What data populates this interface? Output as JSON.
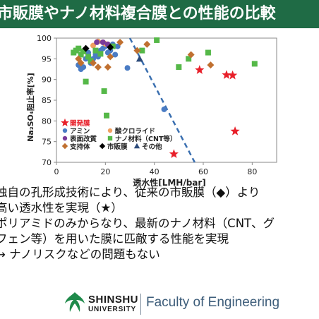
{
  "slide": {
    "title": "市販膜やナノ材料複合膜との性能の比較",
    "bullets": [
      "独自の孔形成技術により、従来の市販膜（◆）より",
      "高い透水性を実現（★）",
      "ポリアミドのみからなり、最新のナノ材料（CNT、グ",
      "フェン等）を用いた膜に匹敵する性能を実現",
      "→ ナノリスクなどの問題もない"
    ],
    "footer": {
      "logo_name": "SHINSHU",
      "logo_sub": "UNIVERSITY",
      "faculty": "Faculty of Engineering"
    }
  },
  "chart_data": {
    "type": "scatter",
    "xlabel": "透水性[LMH/bar]",
    "ylabel": "Na₂SO₄阻止率[%]",
    "xlim": [
      0,
      90
    ],
    "ylim": [
      70,
      100
    ],
    "x_ticks": [
      0,
      20,
      40,
      60,
      80
    ],
    "y_ticks": [
      70,
      75,
      80,
      85,
      90,
      95,
      100
    ],
    "grid": false,
    "legend_position": "bottom-left",
    "series": [
      {
        "name": "開発膜",
        "marker": "star",
        "color": "#e8202a",
        "points": [
          [
            48,
            72
          ],
          [
            58.5,
            92.3
          ],
          [
            69.5,
            91.1
          ],
          [
            72,
            91
          ],
          [
            73,
            77.5
          ]
        ]
      },
      {
        "name": "アミン",
        "marker": "circle",
        "color": "#4a7cc4",
        "points": [
          [
            9,
            93.5
          ],
          [
            10,
            92.5
          ],
          [
            11,
            93
          ],
          [
            12,
            95
          ],
          [
            13,
            96.5
          ],
          [
            14,
            94
          ],
          [
            15,
            95
          ],
          [
            16,
            96
          ],
          [
            17,
            95.5
          ],
          [
            18,
            97
          ],
          [
            19,
            97.5
          ],
          [
            20,
            98
          ],
          [
            21,
            96.5
          ],
          [
            22,
            97
          ],
          [
            23,
            98.5
          ],
          [
            24,
            96
          ],
          [
            25,
            98
          ],
          [
            29,
            92.8
          ],
          [
            44,
            82.8
          ]
        ]
      },
      {
        "name": "酸クロライド",
        "marker": "circle",
        "color": "#f0a060",
        "points": [
          [
            15,
            98.2
          ],
          [
            17,
            99.2
          ],
          [
            19,
            99
          ],
          [
            20,
            98.6
          ]
        ]
      },
      {
        "name": "表面改質",
        "marker": "circle",
        "color": "#7a3a9a",
        "points": [
          [
            19,
            99
          ],
          [
            21,
            98.5
          ],
          [
            16.5,
            99
          ]
        ]
      },
      {
        "name": "ナノ材料（CNT等）",
        "marker": "square",
        "color": "#55b848",
        "points": [
          [
            7,
            96.5
          ],
          [
            8,
            97
          ],
          [
            9,
            97.5
          ],
          [
            10,
            96
          ],
          [
            11,
            96.8
          ],
          [
            13,
            95.5
          ],
          [
            14,
            94.5
          ],
          [
            16,
            97
          ],
          [
            18,
            96.2
          ],
          [
            12,
            89.5
          ],
          [
            19.5,
            87.2
          ],
          [
            20.5,
            81.3
          ],
          [
            23,
            98
          ],
          [
            35,
            97
          ],
          [
            41,
            99.5
          ],
          [
            50,
            93
          ],
          [
            54,
            95
          ],
          [
            62,
            96.5
          ],
          [
            81,
            93.8
          ]
        ]
      },
      {
        "name": "支持体",
        "marker": "diamond",
        "color": "#c07030",
        "points": [
          [
            9,
            95
          ],
          [
            10,
            94
          ],
          [
            15,
            94
          ],
          [
            17,
            93
          ],
          [
            21,
            93
          ],
          [
            22,
            95.5
          ],
          [
            26,
            99
          ],
          [
            33,
            97
          ],
          [
            37,
            98.5
          ],
          [
            55,
            96
          ],
          [
            63,
            93.5
          ]
        ]
      },
      {
        "name": "市販膜",
        "marker": "diamond",
        "color": "#000000",
        "points": [
          [
            12,
            97.5
          ],
          [
            22,
            97.8
          ]
        ]
      },
      {
        "name": "その他",
        "marker": "triangle",
        "color": "#2b4a7a",
        "points": [
          [
            34,
            95
          ]
        ]
      }
    ],
    "trend_line": {
      "style": "dashed",
      "color": "#3a6fb0",
      "points": [
        [
          30,
          100
        ],
        [
          56.5,
          70
        ]
      ]
    }
  }
}
